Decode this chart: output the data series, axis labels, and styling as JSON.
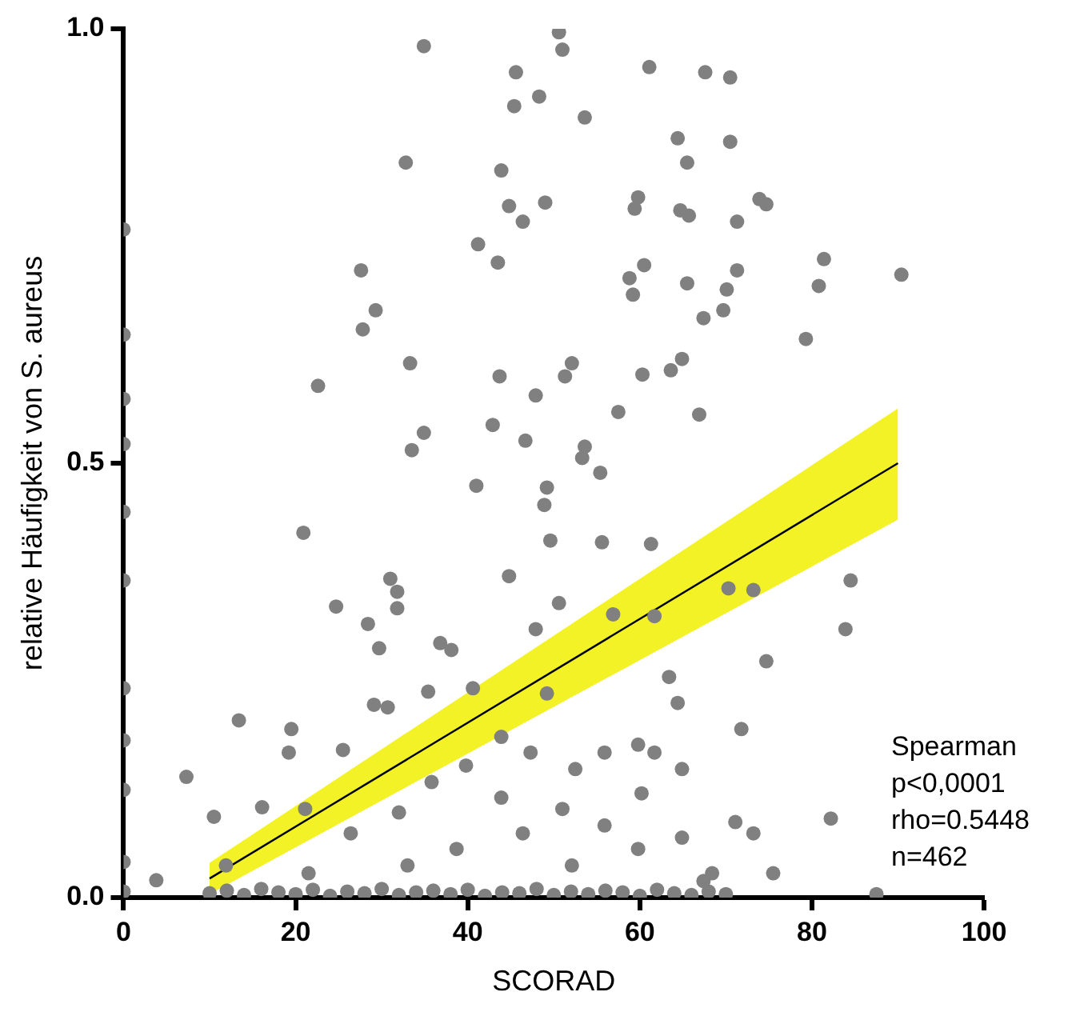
{
  "chart_data": {
    "type": "scatter",
    "xlabel": "SCORAD",
    "ylabel": "relative Häufigkeit von S. aureus",
    "xlim": [
      0,
      100
    ],
    "xticks": [
      0,
      20,
      40,
      60,
      80,
      100
    ],
    "ylim": [
      0,
      1
    ],
    "yticks": [
      {
        "value": 0,
        "label": "0.0"
      },
      {
        "value": 0.5,
        "label": "0.5"
      },
      {
        "value": 1,
        "label": "1.0"
      }
    ],
    "grid": false,
    "legend": false,
    "annotations": [
      "Spearman",
      "p<0,0001",
      "rho=0.5448",
      "n=462"
    ],
    "series": [
      {
        "color": "#808080",
        "marker": "circle",
        "x": [
          34.9,
          45.6,
          50.6,
          51,
          61.1,
          67.6,
          70.5,
          32.8,
          53.6,
          48.3,
          45.4,
          49,
          43.9,
          44.8,
          46.4,
          41.2,
          43.5,
          64.4,
          70.5,
          65.5,
          64.7,
          65.7,
          59.8,
          59.4,
          71.3,
          73.9,
          74.7,
          58.8,
          59.2,
          60.5,
          65.5,
          70.1,
          71.3,
          67.4,
          69.7,
          81.4,
          80.8,
          90.4,
          79.3,
          27.6,
          27.8,
          29.3,
          22.6,
          33.3,
          43.7,
          34.9,
          33.5,
          41,
          42.9,
          46.7,
          49.2,
          48.9,
          53.6,
          53.3,
          55.4,
          47.9,
          51.3,
          52.1,
          57.5,
          60.3,
          63.6,
          64.9,
          66.9,
          61.3,
          55.6,
          49.6,
          44.8,
          31,
          31.8,
          20.9,
          24.7,
          31.8,
          29.7,
          28.4,
          36.8,
          38.1,
          47.9,
          50.6,
          56.9,
          61.7,
          70.3,
          73.2,
          84.5,
          83.9,
          74.7,
          63.4,
          64.4,
          71.8,
          59.8,
          61.7,
          55.9,
          64.9,
          13.4,
          19.5,
          19.2,
          25.5,
          29.1,
          30.7,
          35.4,
          40.6,
          49.2,
          43.9,
          52.5,
          47.3,
          39.8,
          43.9,
          35.8,
          32,
          16.1,
          10.5,
          21.1,
          26.4,
          51,
          60.2,
          55.9,
          64.9,
          71.1,
          73.2,
          82.2,
          7.3,
          3.8,
          0,
          0,
          0,
          0,
          0,
          0,
          0,
          0,
          0,
          0,
          0,
          87.5,
          75.5,
          67.4,
          46.4,
          38.7,
          52.1,
          59.8,
          68.4,
          33,
          21.5,
          11.9,
          10,
          12,
          14,
          16,
          18,
          20,
          22,
          24,
          26,
          28,
          30,
          32,
          34,
          36,
          38,
          40,
          42,
          44,
          46,
          48,
          50,
          52,
          54,
          56,
          58,
          60,
          62,
          64,
          66,
          68,
          70
        ],
        "values": [
          0.98,
          0.95,
          0.996,
          0.976,
          0.956,
          0.95,
          0.944,
          0.846,
          0.898,
          0.922,
          0.911,
          0.8,
          0.837,
          0.796,
          0.778,
          0.752,
          0.731,
          0.874,
          0.87,
          0.846,
          0.791,
          0.785,
          0.806,
          0.793,
          0.778,
          0.804,
          0.798,
          0.713,
          0.694,
          0.728,
          0.707,
          0.7,
          0.722,
          0.667,
          0.676,
          0.735,
          0.704,
          0.717,
          0.643,
          0.722,
          0.654,
          0.676,
          0.589,
          0.615,
          0.6,
          0.535,
          0.515,
          0.474,
          0.544,
          0.526,
          0.472,
          0.452,
          0.519,
          0.506,
          0.489,
          0.578,
          0.6,
          0.615,
          0.559,
          0.602,
          0.607,
          0.62,
          0.556,
          0.407,
          0.409,
          0.411,
          0.37,
          0.367,
          0.352,
          0.42,
          0.335,
          0.333,
          0.287,
          0.315,
          0.293,
          0.285,
          0.309,
          0.339,
          0.326,
          0.324,
          0.356,
          0.354,
          0.365,
          0.309,
          0.272,
          0.254,
          0.224,
          0.194,
          0.176,
          0.167,
          0.167,
          0.148,
          0.204,
          0.194,
          0.167,
          0.17,
          0.222,
          0.219,
          0.237,
          0.241,
          0.235,
          0.185,
          0.148,
          0.167,
          0.152,
          0.115,
          0.133,
          0.098,
          0.104,
          0.093,
          0.102,
          0.074,
          0.102,
          0.12,
          0.083,
          0.069,
          0.087,
          0.074,
          0.091,
          0.139,
          0.02,
          0.769,
          0.648,
          0.574,
          0.522,
          0.444,
          0.365,
          0.241,
          0.181,
          0.124,
          0.041,
          0.007,
          0.004,
          0.028,
          0.019,
          0.074,
          0.056,
          0.037,
          0.056,
          0.028,
          0.037,
          0.028,
          0.037,
          0.005,
          0.008,
          0.003,
          0.01,
          0.006,
          0.004,
          0.009,
          0.002,
          0.007,
          0.005,
          0.01,
          0.003,
          0.006,
          0.008,
          0.004,
          0.009,
          0.002,
          0.006,
          0.005,
          0.01,
          0.003,
          0.007,
          0.004,
          0.008,
          0.006,
          0.002,
          0.009,
          0.005,
          0.003,
          0.007,
          0.004
        ]
      },
      {
        "type": "line",
        "color": "#000000",
        "marker": "none",
        "x": [
          10,
          90
        ],
        "values": [
          0.022,
          0.5
        ],
        "lower": [
          0.004,
          0.435
        ],
        "upper": [
          0.04,
          0.563
        ]
      }
    ]
  }
}
